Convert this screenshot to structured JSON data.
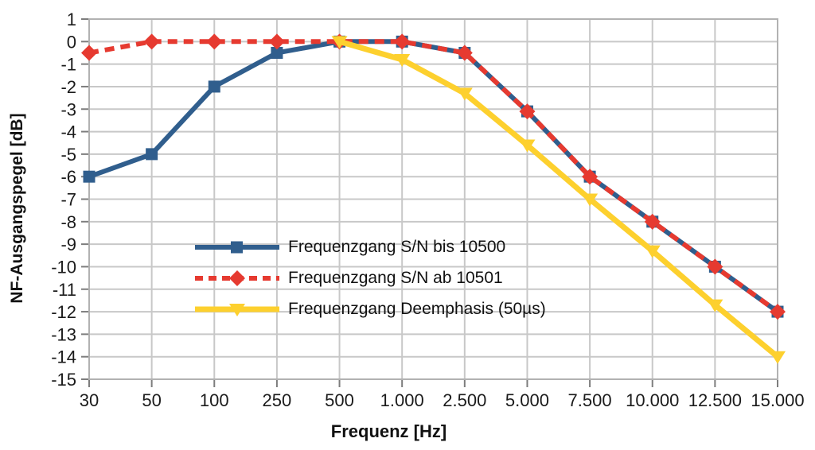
{
  "chart_data": {
    "type": "line",
    "title": "",
    "xlabel": "Frequenz [Hz]",
    "ylabel": "NF-Ausgangspegel [dB]",
    "categories": [
      "30",
      "50",
      "100",
      "250",
      "500",
      "1.000",
      "2.500",
      "5.000",
      "7.500",
      "10.000",
      "12.500",
      "15.000"
    ],
    "ylim": [
      -15,
      1
    ],
    "y_tick_step": 1,
    "y_tick_labels": [
      "1",
      "0",
      "-1",
      "-2",
      "-3",
      "-4",
      "-5",
      "-6",
      "-7",
      "-8",
      "-9",
      "-10",
      "-11",
      "-12",
      "-13",
      "-14",
      "-15"
    ],
    "grid": true,
    "legend_position": "inside-left-middle",
    "series": [
      {
        "name": "Frequenzgang S/N bis 10500",
        "color": "#305e8d",
        "line_style": "solid",
        "marker": "square",
        "values": [
          -6,
          -5,
          -2,
          -0.5,
          0,
          0,
          -0.5,
          -3.1,
          -6,
          -8,
          -10,
          -12
        ]
      },
      {
        "name": "Frequenzgang S/N ab 10501",
        "color": "#e63a30",
        "line_style": "dashed",
        "marker": "diamond",
        "values": [
          -0.5,
          0,
          0,
          0,
          0,
          0,
          -0.5,
          -3.1,
          -6,
          -8,
          -10,
          -12
        ]
      },
      {
        "name": "Frequenzgang Deemphasis (50µs)",
        "color": "#fdd02e",
        "line_style": "solid",
        "marker": "triangle-down",
        "values": [
          null,
          null,
          null,
          null,
          0,
          -0.8,
          -2.3,
          -4.6,
          -7,
          -9.3,
          -11.7,
          -14
        ]
      }
    ]
  }
}
